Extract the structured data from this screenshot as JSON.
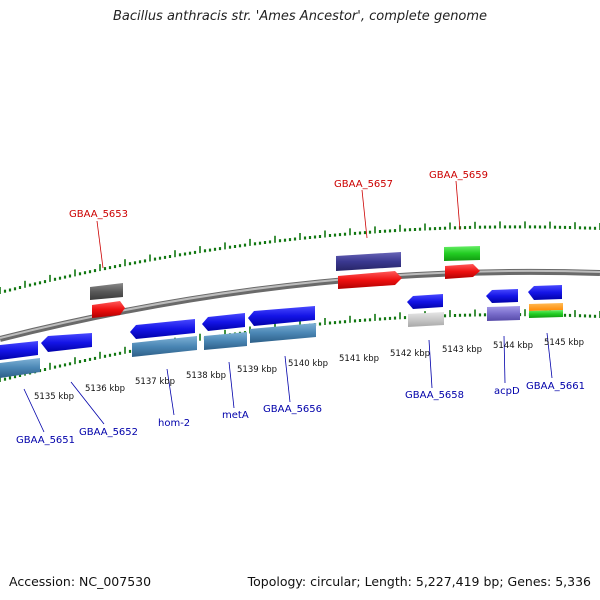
{
  "title": "Bacillus anthracis str. 'Ames Ancestor', complete genome",
  "accession": "Accession: NC_007530",
  "stats": "Topology: circular; Length: 5,227,419 bp; Genes: 5,336",
  "colors": {
    "forward_label": "#cc0000",
    "reverse_label": "#0000aa",
    "scale_ticks": "#117711",
    "backbone": "#888888"
  },
  "scale_labels": [
    "5135 kbp",
    "5136 kbp",
    "5137 kbp",
    "5138 kbp",
    "5139 kbp",
    "5140 kbp",
    "5141 kbp",
    "5142 kbp",
    "5143 kbp",
    "5144 kbp",
    "5145 kbp"
  ],
  "gene_labels_forward": [
    "GBAA_5653",
    "GBAA_5657",
    "GBAA_5659"
  ],
  "gene_labels_reverse": [
    "GBAA_5651",
    "GBAA_5652",
    "hom-2",
    "metA",
    "GBAA_5656",
    "GBAA_5658",
    "acpD",
    "GBAA_5661"
  ]
}
